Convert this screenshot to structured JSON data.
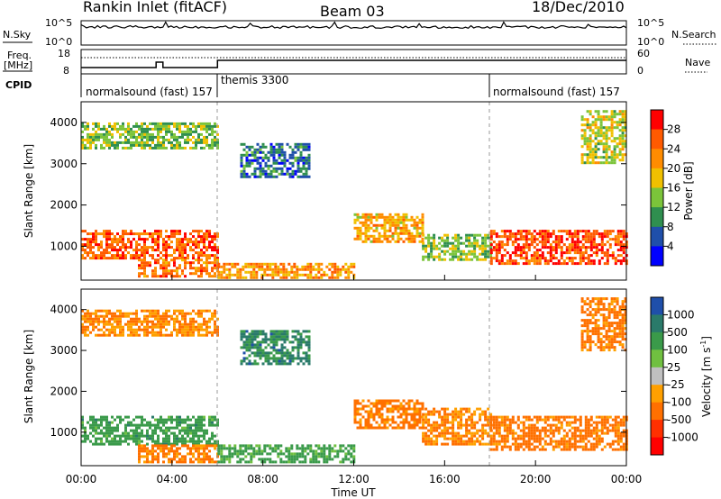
{
  "header": {
    "station": "Rankin Inlet (fitACF)",
    "beam": "Beam 03",
    "date": "18/Dec/2010"
  },
  "top_panels": {
    "nsky_label": "N.Sky",
    "nsky_ticks": [
      "10^5",
      "10^0"
    ],
    "nsearch_label": "N.Search",
    "freq_label_1": "Freq.",
    "freq_label_2": "[MHz]",
    "freq_ticks": [
      "18",
      "8"
    ],
    "nave_ticks": [
      "60",
      "0"
    ],
    "nave_label": "Nave",
    "cpid_label": "CPID",
    "cpid_segments": [
      {
        "name": "normalsound (fast) 157",
        "start_h": 0,
        "end_h": 6
      },
      {
        "name": "themis 3300",
        "start_h": 6,
        "end_h": 18
      },
      {
        "name": "normalsound (fast) 157",
        "start_h": 18,
        "end_h": 24
      }
    ]
  },
  "colors": {
    "power": [
      "#0000ff",
      "#1f4faa",
      "#2f8f4f",
      "#7bc43a",
      "#f0c000",
      "#ff8c00",
      "#ff5a00",
      "#ff0000"
    ],
    "velocity": [
      "#1f4faa",
      "#2a7a6a",
      "#3a9a4a",
      "#70c040",
      "#c0c0c0",
      "#ffa000",
      "#ff7000",
      "#ff3000",
      "#ff0000"
    ],
    "ground_scatter": "#b0b0b0"
  },
  "power_colorbar": {
    "label": "Power [dB]",
    "ticks": [
      "28",
      "24",
      "20",
      "16",
      "12",
      "8",
      "4"
    ]
  },
  "velocity_colorbar": {
    "label": "Velocity [m s",
    "label_sup": "-1",
    "label_end": "]",
    "ticks": [
      "1000",
      "500",
      "100",
      "25",
      "-25",
      "-100",
      "-500",
      "-1000"
    ]
  },
  "chart_data": [
    {
      "type": "heatmap",
      "title": "Power",
      "xlabel": "Time UT",
      "ylabel": "Slant Range [km]",
      "x_ticks": [
        "00:00",
        "04:00",
        "08:00",
        "12:00",
        "16:00",
        "20:00",
        "00:00"
      ],
      "y_ticks": [
        "1000",
        "2000",
        "3000",
        "4000"
      ],
      "xlim": [
        0,
        24
      ],
      "ylim": [
        180,
        4500
      ],
      "unit": "dB",
      "regions": [
        {
          "x": [
            0,
            6
          ],
          "y": [
            700,
            1400
          ],
          "value": 26
        },
        {
          "x": [
            2.5,
            6
          ],
          "y": [
            300,
            700
          ],
          "value": 24
        },
        {
          "x": [
            6,
            12
          ],
          "y": [
            250,
            600
          ],
          "value": 22
        },
        {
          "x": [
            12,
            15
          ],
          "y": [
            1100,
            1800
          ],
          "value": 20
        },
        {
          "x": [
            15,
            18
          ],
          "y": [
            700,
            1300
          ],
          "value": 14
        },
        {
          "x": [
            18,
            24
          ],
          "y": [
            600,
            1400
          ],
          "value": 27
        },
        {
          "x": [
            0,
            6
          ],
          "y": [
            3400,
            4000
          ],
          "value": 14
        },
        {
          "x": [
            7,
            10
          ],
          "y": [
            2700,
            3500
          ],
          "value": 8
        },
        {
          "x": [
            22,
            24
          ],
          "y": [
            3000,
            4300
          ],
          "value": 16
        }
      ]
    },
    {
      "type": "heatmap",
      "title": "Velocity",
      "xlabel": "Time UT",
      "ylabel": "Slant Range [km]",
      "x_ticks": [
        "00:00",
        "04:00",
        "08:00",
        "12:00",
        "16:00",
        "20:00",
        "00:00"
      ],
      "y_ticks": [
        "1000",
        "2000",
        "3000",
        "4000"
      ],
      "xlim": [
        0,
        24
      ],
      "ylim": [
        180,
        4500
      ],
      "unit": "m s^-1",
      "regions": [
        {
          "x": [
            0,
            6
          ],
          "y": [
            700,
            1400
          ],
          "value": 300
        },
        {
          "x": [
            2.5,
            6
          ],
          "y": [
            300,
            700
          ],
          "value": -150
        },
        {
          "x": [
            6,
            12
          ],
          "y": [
            250,
            700
          ],
          "value": 200
        },
        {
          "x": [
            12,
            15
          ],
          "y": [
            1100,
            1800
          ],
          "value": -150
        },
        {
          "x": [
            15,
            18
          ],
          "y": [
            700,
            1600
          ],
          "value": -120
        },
        {
          "x": [
            18,
            24
          ],
          "y": [
            600,
            1400
          ],
          "value": -200
        },
        {
          "x": [
            0,
            6
          ],
          "y": [
            3400,
            4000
          ],
          "value": -100
        },
        {
          "x": [
            7,
            10
          ],
          "y": [
            2700,
            3500
          ],
          "value": 600
        },
        {
          "x": [
            22,
            24
          ],
          "y": [
            3000,
            4300
          ],
          "value": -150
        }
      ]
    }
  ]
}
